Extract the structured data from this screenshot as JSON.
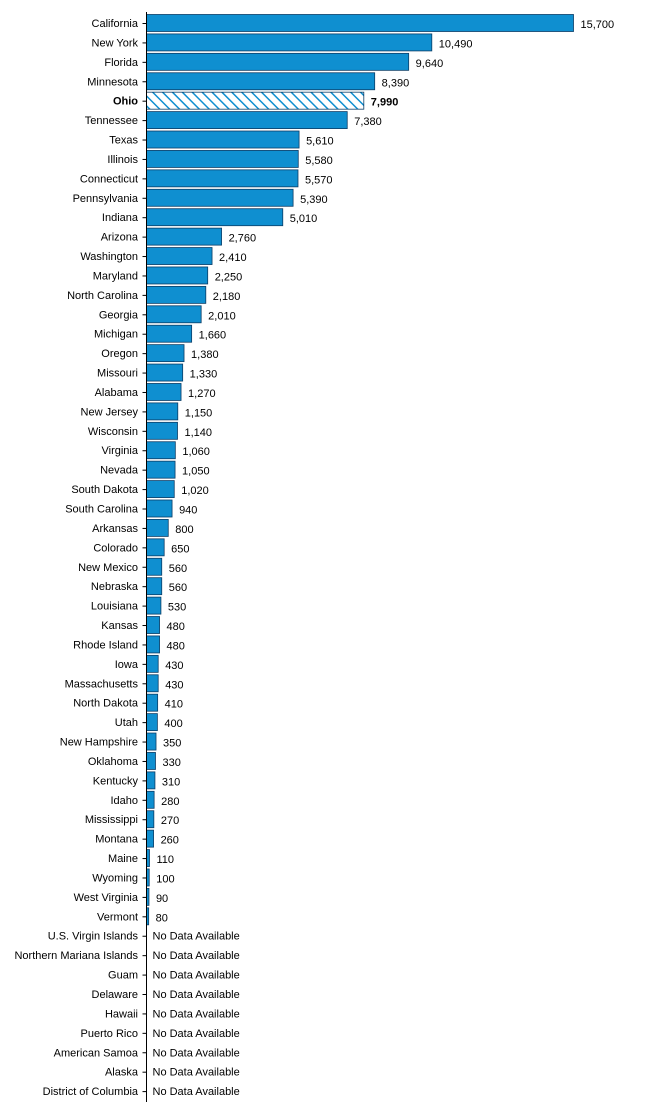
{
  "chart_data": {
    "type": "bar",
    "orientation": "horizontal",
    "highlight": "Ohio",
    "no_data_label": "No Data Available",
    "colors": {
      "bar": "#0f8fd0",
      "bar_edge": "#0b3d66",
      "highlight_hatch": "#0f8fd0"
    },
    "xlim": [
      0,
      15700
    ],
    "categories": [
      "California",
      "New York",
      "Florida",
      "Minnesota",
      "Ohio",
      "Tennessee",
      "Texas",
      "Illinois",
      "Connecticut",
      "Pennsylvania",
      "Indiana",
      "Arizona",
      "Washington",
      "Maryland",
      "North Carolina",
      "Georgia",
      "Michigan",
      "Oregon",
      "Missouri",
      "Alabama",
      "New Jersey",
      "Wisconsin",
      "Virginia",
      "Nevada",
      "South Dakota",
      "South Carolina",
      "Arkansas",
      "Colorado",
      "New Mexico",
      "Nebraska",
      "Louisiana",
      "Kansas",
      "Rhode Island",
      "Iowa",
      "Massachusetts",
      "North Dakota",
      "Utah",
      "New Hampshire",
      "Oklahoma",
      "Kentucky",
      "Idaho",
      "Mississippi",
      "Montana",
      "Maine",
      "Wyoming",
      "West Virginia",
      "Vermont",
      "U.S. Virgin Islands",
      "Northern Mariana Islands",
      "Guam",
      "Delaware",
      "Hawaii",
      "Puerto Rico",
      "American Samoa",
      "Alaska",
      "District of Columbia"
    ],
    "values": [
      15700,
      10490,
      9640,
      8390,
      7990,
      7380,
      5610,
      5580,
      5570,
      5390,
      5010,
      2760,
      2410,
      2250,
      2180,
      2010,
      1660,
      1380,
      1330,
      1270,
      1150,
      1140,
      1060,
      1050,
      1020,
      940,
      800,
      650,
      560,
      560,
      530,
      480,
      480,
      430,
      430,
      410,
      400,
      350,
      330,
      310,
      280,
      270,
      260,
      110,
      100,
      90,
      80,
      null,
      null,
      null,
      null,
      null,
      null,
      null,
      null,
      null
    ],
    "value_labels": [
      "15,700",
      "10,490",
      "9,640",
      "8,390",
      "7,990",
      "7,380",
      "5,610",
      "5,580",
      "5,570",
      "5,390",
      "5,010",
      "2,760",
      "2,410",
      "2,250",
      "2,180",
      "2,010",
      "1,660",
      "1,380",
      "1,330",
      "1,270",
      "1,150",
      "1,140",
      "1,060",
      "1,050",
      "1,020",
      "940",
      "800",
      "650",
      "560",
      "560",
      "530",
      "480",
      "480",
      "430",
      "430",
      "410",
      "400",
      "350",
      "330",
      "310",
      "280",
      "270",
      "260",
      "110",
      "100",
      "90",
      "80",
      "No Data Available",
      "No Data Available",
      "No Data Available",
      "No Data Available",
      "No Data Available",
      "No Data Available",
      "No Data Available",
      "No Data Available",
      "No Data Available"
    ]
  }
}
